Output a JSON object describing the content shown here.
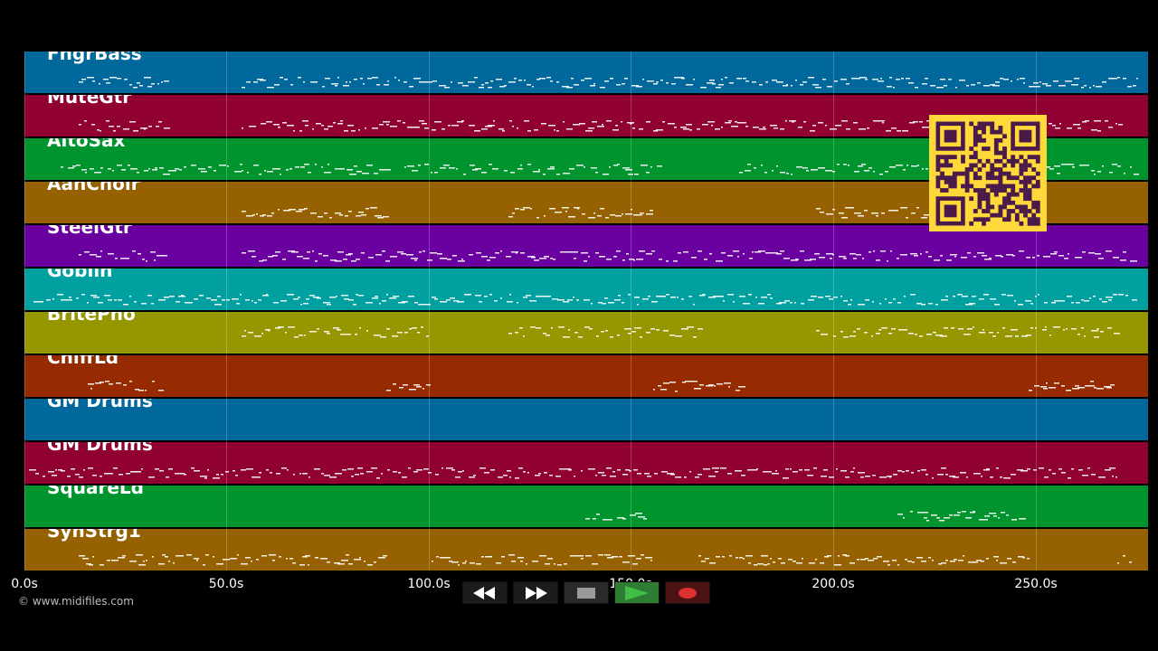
{
  "tracks": [
    {
      "label": "FngrBass",
      "color": "#00689a"
    },
    {
      "label": "MuteGtr",
      "color": "#900030"
    },
    {
      "label": "AltoSax",
      "color": "#00942e"
    },
    {
      "label": "AahChoir",
      "color": "#966100"
    },
    {
      "label": "SteelGtr",
      "color": "#6a00a0"
    },
    {
      "label": "Goblin",
      "color": "#00a0a0"
    },
    {
      "label": "BritePno",
      "color": "#969600"
    },
    {
      "label": "ChiffLd",
      "color": "#962a00"
    },
    {
      "label": "GM Drums",
      "color": "#00689a"
    },
    {
      "label": "GM Drums",
      "color": "#900030"
    },
    {
      "label": "SquareLd",
      "color": "#00942e"
    },
    {
      "label": "SynStrg1",
      "color": "#966100"
    }
  ],
  "axis": {
    "ticks": [
      "0.0s",
      "50.0s",
      "100.0s",
      "150.0s",
      "200.0s",
      "250.0s"
    ]
  },
  "copyright": "© www.midifiles.com",
  "transport": {
    "buttons": [
      "rewind-icon",
      "fast-forward-icon",
      "stop-icon",
      "play-icon",
      "record-icon"
    ],
    "play_color": "#3fbf44",
    "record_color": "#e03030"
  },
  "qr_color": "#ffd83a"
}
